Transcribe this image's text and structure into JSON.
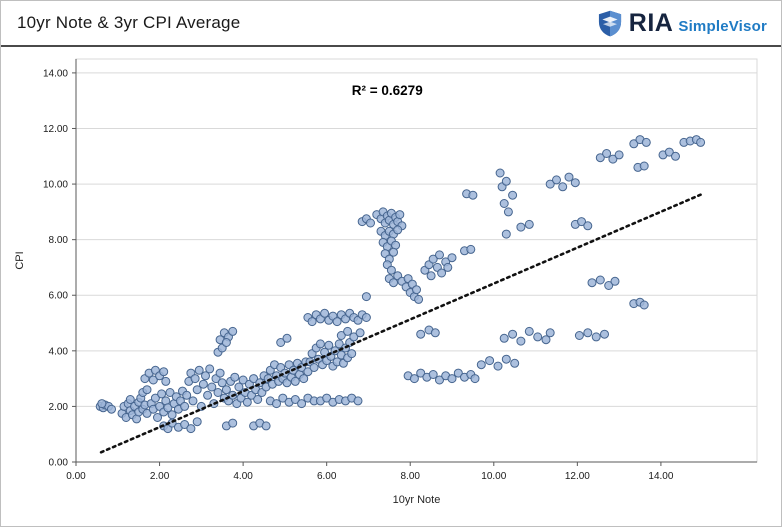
{
  "header": {
    "title": "10yr Note & 3yr CPI Average",
    "logo": {
      "ria": "RIA",
      "simplevisor": "SimpleVisor"
    }
  },
  "colors": {
    "point_fill": "#9db5d8",
    "point_stroke": "#46658f",
    "grid": "#d9d9d9",
    "axis_line": "#595959",
    "tick_text": "#1a1a1a",
    "trend": "#111111",
    "ria_navy": "#16243f",
    "sv_blue": "#1f7bc4",
    "shield_blue": "#2b5ea7",
    "shield_light": "#5b8fd0"
  },
  "chart_data": {
    "type": "scatter",
    "title": "10yr Note & 3yr CPI Average",
    "xlabel": "10yr Note",
    "ylabel": "CPI",
    "xlim": [
      0,
      16.3
    ],
    "ylim": [
      0,
      14.5
    ],
    "xticks": [
      0,
      2,
      4,
      6,
      8,
      10,
      12,
      14
    ],
    "yticks": [
      0,
      2,
      4,
      6,
      8,
      10,
      12,
      14
    ],
    "tick_format_decimals": 2,
    "grid": "horizontal",
    "legend": "none",
    "annotation": {
      "text": "R² = 0.6279",
      "x": 7.45,
      "y": 13.2
    },
    "r_squared": 0.6279,
    "trendline": {
      "style": "dotted",
      "x1": 0.6,
      "y1": 0.35,
      "x2": 15.0,
      "y2": 9.65
    },
    "points": [
      [
        0.58,
        2.0
      ],
      [
        0.65,
        1.95
      ],
      [
        0.7,
        2.05
      ],
      [
        0.78,
        2.0
      ],
      [
        0.85,
        1.9
      ],
      [
        0.62,
        2.1
      ],
      [
        1.1,
        1.75
      ],
      [
        1.15,
        2.0
      ],
      [
        1.2,
        1.6
      ],
      [
        1.25,
        2.1
      ],
      [
        1.3,
        1.85
      ],
      [
        1.3,
        2.25
      ],
      [
        1.35,
        1.7
      ],
      [
        1.4,
        2.0
      ],
      [
        1.45,
        1.55
      ],
      [
        1.5,
        2.15
      ],
      [
        1.5,
        1.8
      ],
      [
        1.55,
        2.3
      ],
      [
        1.6,
        1.9
      ],
      [
        1.6,
        2.5
      ],
      [
        1.65,
        2.05
      ],
      [
        1.7,
        1.75
      ],
      [
        1.7,
        2.6
      ],
      [
        1.65,
        3.0
      ],
      [
        1.75,
        3.2
      ],
      [
        1.85,
        2.95
      ],
      [
        1.9,
        3.3
      ],
      [
        2.0,
        3.1
      ],
      [
        2.1,
        3.25
      ],
      [
        2.15,
        2.9
      ],
      [
        1.8,
        2.1
      ],
      [
        1.85,
        1.9
      ],
      [
        1.9,
        2.3
      ],
      [
        1.95,
        1.6
      ],
      [
        2.0,
        2.0
      ],
      [
        2.05,
        2.45
      ],
      [
        2.1,
        1.8
      ],
      [
        2.15,
        2.2
      ],
      [
        2.2,
        1.95
      ],
      [
        2.25,
        2.5
      ],
      [
        2.3,
        1.7
      ],
      [
        2.35,
        2.1
      ],
      [
        2.4,
        2.35
      ],
      [
        2.45,
        1.9
      ],
      [
        2.5,
        2.2
      ],
      [
        2.55,
        2.55
      ],
      [
        2.6,
        2.0
      ],
      [
        2.65,
        2.4
      ],
      [
        2.1,
        1.3
      ],
      [
        2.2,
        1.2
      ],
      [
        2.3,
        1.4
      ],
      [
        2.45,
        1.25
      ],
      [
        2.6,
        1.35
      ],
      [
        2.75,
        1.2
      ],
      [
        2.9,
        1.45
      ],
      [
        2.7,
        2.9
      ],
      [
        2.75,
        3.2
      ],
      [
        2.8,
        2.2
      ],
      [
        2.85,
        3.0
      ],
      [
        2.9,
        2.6
      ],
      [
        2.95,
        3.3
      ],
      [
        3.0,
        2.0
      ],
      [
        3.05,
        2.8
      ],
      [
        3.1,
        3.1
      ],
      [
        3.15,
        2.4
      ],
      [
        3.2,
        3.35
      ],
      [
        3.25,
        2.7
      ],
      [
        3.3,
        2.1
      ],
      [
        3.35,
        3.0
      ],
      [
        3.4,
        2.5
      ],
      [
        3.45,
        3.2
      ],
      [
        3.5,
        2.85
      ],
      [
        3.55,
        2.3
      ],
      [
        3.4,
        3.95
      ],
      [
        3.5,
        4.1
      ],
      [
        3.45,
        4.4
      ],
      [
        3.55,
        4.65
      ],
      [
        3.65,
        4.5
      ],
      [
        3.75,
        4.7
      ],
      [
        3.6,
        4.3
      ],
      [
        3.6,
        1.3
      ],
      [
        3.75,
        1.4
      ],
      [
        3.6,
        2.6
      ],
      [
        3.65,
        2.2
      ],
      [
        3.7,
        2.9
      ],
      [
        3.75,
        2.4
      ],
      [
        3.8,
        3.05
      ],
      [
        3.85,
        2.1
      ],
      [
        3.9,
        2.7
      ],
      [
        3.95,
        2.3
      ],
      [
        4.0,
        2.95
      ],
      [
        4.05,
        2.5
      ],
      [
        4.1,
        2.15
      ],
      [
        4.15,
        2.8
      ],
      [
        4.2,
        2.4
      ],
      [
        4.25,
        3.0
      ],
      [
        4.3,
        2.6
      ],
      [
        4.35,
        2.25
      ],
      [
        4.4,
        2.85
      ],
      [
        4.45,
        2.5
      ],
      [
        4.5,
        3.1
      ],
      [
        4.55,
        2.7
      ],
      [
        4.25,
        1.3
      ],
      [
        4.4,
        1.4
      ],
      [
        4.55,
        1.3
      ],
      [
        4.6,
        3.0
      ],
      [
        4.65,
        3.3
      ],
      [
        4.7,
        2.8
      ],
      [
        4.75,
        3.5
      ],
      [
        4.8,
        3.1
      ],
      [
        4.85,
        2.9
      ],
      [
        4.9,
        3.4
      ],
      [
        4.95,
        3.0
      ],
      [
        5.0,
        3.2
      ],
      [
        5.05,
        2.85
      ],
      [
        5.1,
        3.5
      ],
      [
        5.15,
        3.05
      ],
      [
        5.2,
        3.3
      ],
      [
        5.25,
        2.9
      ],
      [
        5.3,
        3.55
      ],
      [
        5.35,
        3.15
      ],
      [
        5.4,
        3.4
      ],
      [
        5.45,
        3.0
      ],
      [
        5.5,
        3.6
      ],
      [
        5.55,
        3.25
      ],
      [
        4.9,
        4.3
      ],
      [
        5.05,
        4.45
      ],
      [
        4.65,
        2.2
      ],
      [
        4.8,
        2.1
      ],
      [
        4.95,
        2.3
      ],
      [
        5.1,
        2.15
      ],
      [
        5.25,
        2.25
      ],
      [
        5.4,
        2.1
      ],
      [
        5.55,
        2.3
      ],
      [
        5.7,
        2.2
      ],
      [
        5.6,
        3.6
      ],
      [
        5.65,
        3.9
      ],
      [
        5.7,
        3.4
      ],
      [
        5.75,
        4.1
      ],
      [
        5.8,
        3.7
      ],
      [
        5.85,
        4.25
      ],
      [
        5.9,
        3.5
      ],
      [
        5.95,
        3.95
      ],
      [
        6.0,
        3.65
      ],
      [
        6.05,
        4.2
      ],
      [
        6.1,
        3.8
      ],
      [
        6.15,
        3.45
      ],
      [
        6.2,
        4.0
      ],
      [
        6.25,
        3.6
      ],
      [
        6.3,
        4.25
      ],
      [
        6.35,
        3.85
      ],
      [
        6.4,
        3.55
      ],
      [
        6.45,
        4.1
      ],
      [
        6.5,
        3.75
      ],
      [
        6.55,
        4.3
      ],
      [
        6.6,
        3.9
      ],
      [
        5.55,
        5.2
      ],
      [
        5.65,
        5.05
      ],
      [
        5.75,
        5.3
      ],
      [
        5.85,
        5.15
      ],
      [
        5.95,
        5.35
      ],
      [
        6.05,
        5.1
      ],
      [
        6.15,
        5.25
      ],
      [
        6.25,
        5.05
      ],
      [
        6.35,
        5.3
      ],
      [
        6.45,
        5.15
      ],
      [
        6.55,
        5.35
      ],
      [
        6.65,
        5.2
      ],
      [
        6.75,
        5.1
      ],
      [
        6.85,
        5.3
      ],
      [
        6.95,
        5.2
      ],
      [
        5.85,
        2.2
      ],
      [
        6.0,
        2.3
      ],
      [
        6.15,
        2.15
      ],
      [
        6.3,
        2.25
      ],
      [
        6.45,
        2.2
      ],
      [
        6.6,
        2.3
      ],
      [
        6.75,
        2.2
      ],
      [
        6.35,
        4.55
      ],
      [
        6.5,
        4.7
      ],
      [
        6.65,
        4.5
      ],
      [
        6.8,
        4.65
      ],
      [
        6.85,
        8.65
      ],
      [
        6.95,
        8.75
      ],
      [
        7.05,
        8.6
      ],
      [
        7.2,
        8.9
      ],
      [
        7.3,
        8.75
      ],
      [
        7.35,
        9.0
      ],
      [
        7.4,
        8.6
      ],
      [
        7.45,
        8.85
      ],
      [
        7.5,
        8.7
      ],
      [
        7.55,
        8.95
      ],
      [
        7.6,
        8.55
      ],
      [
        7.65,
        8.8
      ],
      [
        7.7,
        8.65
      ],
      [
        7.75,
        8.9
      ],
      [
        7.8,
        8.5
      ],
      [
        7.3,
        8.3
      ],
      [
        7.4,
        8.15
      ],
      [
        7.5,
        8.3
      ],
      [
        7.6,
        8.2
      ],
      [
        7.7,
        8.35
      ],
      [
        7.35,
        7.9
      ],
      [
        7.45,
        7.75
      ],
      [
        7.55,
        7.95
      ],
      [
        7.65,
        7.8
      ],
      [
        7.4,
        7.5
      ],
      [
        7.5,
        7.3
      ],
      [
        7.6,
        7.55
      ],
      [
        7.45,
        7.1
      ],
      [
        7.55,
        6.9
      ],
      [
        7.5,
        6.6
      ],
      [
        7.6,
        6.45
      ],
      [
        7.7,
        6.7
      ],
      [
        7.8,
        6.5
      ],
      [
        7.9,
        6.3
      ],
      [
        7.95,
        6.6
      ],
      [
        8.0,
        6.1
      ],
      [
        8.05,
        6.4
      ],
      [
        8.1,
        5.95
      ],
      [
        8.15,
        6.2
      ],
      [
        8.2,
        5.85
      ],
      [
        6.95,
        5.95
      ],
      [
        8.35,
        6.9
      ],
      [
        8.45,
        7.1
      ],
      [
        8.5,
        6.7
      ],
      [
        8.55,
        7.3
      ],
      [
        8.65,
        7.0
      ],
      [
        8.7,
        7.45
      ],
      [
        8.75,
        6.8
      ],
      [
        8.85,
        7.2
      ],
      [
        8.9,
        7.0
      ],
      [
        9.0,
        7.35
      ],
      [
        9.3,
        7.6
      ],
      [
        9.45,
        7.65
      ],
      [
        7.95,
        3.1
      ],
      [
        8.1,
        3.0
      ],
      [
        8.25,
        3.2
      ],
      [
        8.4,
        3.05
      ],
      [
        8.55,
        3.15
      ],
      [
        8.7,
        2.95
      ],
      [
        8.85,
        3.1
      ],
      [
        9.0,
        3.0
      ],
      [
        9.15,
        3.2
      ],
      [
        9.3,
        3.05
      ],
      [
        9.45,
        3.15
      ],
      [
        9.55,
        3.0
      ],
      [
        8.25,
        4.6
      ],
      [
        8.45,
        4.75
      ],
      [
        8.6,
        4.65
      ],
      [
        9.35,
        9.65
      ],
      [
        9.5,
        9.6
      ],
      [
        10.15,
        10.4
      ],
      [
        10.2,
        9.9
      ],
      [
        10.3,
        10.1
      ],
      [
        10.25,
        9.3
      ],
      [
        10.35,
        9.0
      ],
      [
        10.45,
        9.6
      ],
      [
        10.65,
        8.45
      ],
      [
        10.85,
        8.55
      ],
      [
        10.3,
        8.2
      ],
      [
        9.7,
        3.5
      ],
      [
        9.9,
        3.65
      ],
      [
        10.1,
        3.45
      ],
      [
        10.3,
        3.7
      ],
      [
        10.5,
        3.55
      ],
      [
        10.25,
        4.45
      ],
      [
        10.45,
        4.6
      ],
      [
        10.65,
        4.35
      ],
      [
        10.85,
        4.7
      ],
      [
        11.05,
        4.5
      ],
      [
        11.25,
        4.4
      ],
      [
        11.35,
        4.65
      ],
      [
        11.35,
        10.0
      ],
      [
        11.5,
        10.15
      ],
      [
        11.65,
        9.9
      ],
      [
        11.8,
        10.25
      ],
      [
        11.95,
        10.05
      ],
      [
        11.95,
        8.55
      ],
      [
        12.1,
        8.65
      ],
      [
        12.25,
        8.5
      ],
      [
        12.35,
        6.45
      ],
      [
        12.55,
        6.55
      ],
      [
        12.75,
        6.35
      ],
      [
        12.9,
        6.5
      ],
      [
        12.05,
        4.55
      ],
      [
        12.25,
        4.65
      ],
      [
        12.45,
        4.5
      ],
      [
        12.65,
        4.6
      ],
      [
        12.55,
        10.95
      ],
      [
        12.7,
        11.1
      ],
      [
        12.85,
        10.9
      ],
      [
        13.0,
        11.05
      ],
      [
        13.35,
        11.45
      ],
      [
        13.5,
        11.6
      ],
      [
        13.65,
        11.5
      ],
      [
        13.45,
        10.6
      ],
      [
        13.6,
        10.65
      ],
      [
        14.05,
        11.05
      ],
      [
        14.2,
        11.15
      ],
      [
        14.35,
        11.0
      ],
      [
        14.55,
        11.5
      ],
      [
        14.7,
        11.55
      ],
      [
        14.85,
        11.6
      ],
      [
        14.95,
        11.5
      ],
      [
        13.35,
        5.7
      ],
      [
        13.5,
        5.75
      ],
      [
        13.6,
        5.65
      ]
    ]
  }
}
